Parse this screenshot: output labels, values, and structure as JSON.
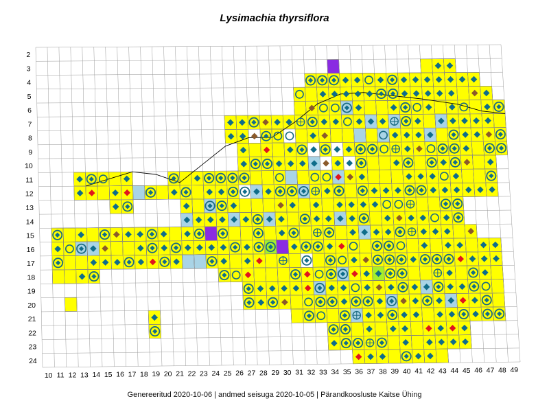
{
  "title": "Lysimachia thyrsiflora",
  "footer": {
    "generated": "Genereeritud 2020-10-06",
    "data_state": "andmed seisuga 2020-10-05",
    "organization": "Pärandkoosluste Kaitse Ühing",
    "separator": "|"
  },
  "axes": {
    "columns": [
      "10",
      "11",
      "12",
      "13",
      "14",
      "15",
      "16",
      "17",
      "18",
      "19",
      "20",
      "21",
      "22",
      "23",
      "24",
      "25",
      "26",
      "27",
      "28",
      "29",
      "30",
      "31",
      "32",
      "33",
      "34",
      "35",
      "36",
      "37",
      "38",
      "39",
      "40",
      "41",
      "42",
      "43",
      "44",
      "45",
      "46",
      "47",
      "48",
      "49"
    ],
    "rows": [
      "2",
      "3",
      "4",
      "5",
      "6",
      "7",
      "8",
      "9",
      "10",
      "11",
      "12",
      "13",
      "14",
      "15",
      "16",
      "17",
      "18",
      "19",
      "20",
      "21",
      "22",
      "23",
      "24"
    ]
  },
  "colors": {
    "yellow_cell": "#ffff00",
    "blue_cell": "#a9d4e6",
    "purple_cell": "#8a2be2",
    "green_cell": "#a6f02a",
    "diamond_teal": "#0f6d8a",
    "diamond_brown": "#8b5a2b",
    "diamond_red": "#e0141e",
    "ring_teal": "#1a6b82",
    "grid_line": "#9a9a9a",
    "coast_line": "#000000"
  },
  "icons": {
    "diamond": "diamond-marker-icon",
    "ring": "ring-marker-icon",
    "ring_diamond": "ring-with-diamond-icon",
    "ring_cross": "ring-with-cross-icon"
  }
}
